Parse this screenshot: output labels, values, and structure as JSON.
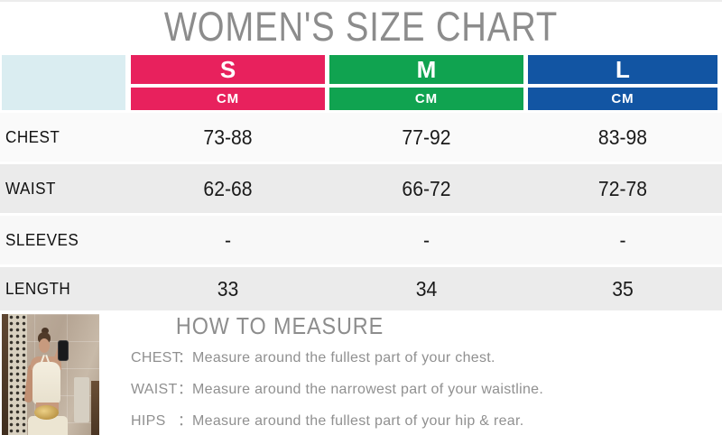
{
  "title": "WOMEN'S SIZE CHART",
  "table": {
    "unit_label": "CM",
    "sizes": [
      {
        "label": "S",
        "color": "#E8215D"
      },
      {
        "label": "M",
        "color": "#10A350"
      },
      {
        "label": "L",
        "color": "#1255A3"
      }
    ],
    "rows": [
      {
        "label": "CHEST",
        "values": [
          "73-88",
          "77-92",
          "83-98"
        ]
      },
      {
        "label": "WAIST",
        "values": [
          "62-68",
          "66-72",
          "72-78"
        ]
      },
      {
        "label": "SLEEVES",
        "values": [
          "-",
          "-",
          "-"
        ]
      },
      {
        "label": "LENGTH",
        "values": [
          "33",
          "34",
          "35"
        ]
      }
    ]
  },
  "how_to_measure": {
    "heading": "HOW TO MEASURE",
    "colon": "：",
    "items": [
      {
        "label": "CHEST",
        "text": "Measure around the fullest part of your chest."
      },
      {
        "label": "WAIST",
        "text": "Measure around the narrowest part of your waistline."
      },
      {
        "label": "HIPS",
        "text": "Measure around the fullest part of your hip & rear."
      }
    ]
  },
  "photo": {
    "description": "model-mirror-selfie"
  },
  "colors": {
    "size_s": "#E8215D",
    "size_m": "#10A350",
    "size_l": "#1255A3",
    "corner_cell": "#DAEDF1",
    "row_alt": "#EBEBEB",
    "title_gray": "#8C8C8C",
    "measure_gray": "#909090"
  },
  "chart_data": {
    "type": "table",
    "title": "WOMEN'S SIZE CHART",
    "unit": "CM",
    "columns": [
      "",
      "S",
      "M",
      "L"
    ],
    "rows": [
      [
        "CHEST",
        "73-88",
        "77-92",
        "83-98"
      ],
      [
        "WAIST",
        "62-68",
        "66-72",
        "72-78"
      ],
      [
        "SLEEVES",
        "-",
        "-",
        "-"
      ],
      [
        "LENGTH",
        "33",
        "34",
        "35"
      ]
    ]
  }
}
